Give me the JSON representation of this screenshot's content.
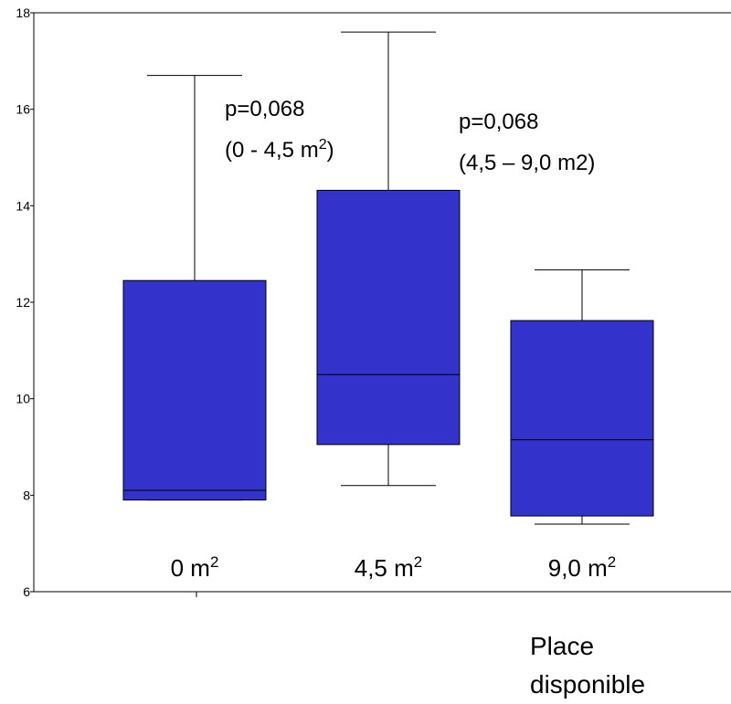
{
  "chart_data": {
    "type": "box",
    "ylim": [
      6,
      18
    ],
    "yticks": [
      "6",
      "8",
      "10",
      "12",
      "14",
      "16",
      "18"
    ],
    "ytick_values": [
      6,
      8,
      10,
      12,
      14,
      16,
      18
    ],
    "xlabel": [
      "Place",
      "disponible"
    ],
    "box_color": "#3333CC",
    "categories": [
      {
        "label": "0 m",
        "sup": "2",
        "whisker_low": 7.9,
        "q1": 7.9,
        "median": 8.1,
        "q3": 12.45,
        "whisker_high": 16.7
      },
      {
        "label": "4,5 m",
        "sup": "2",
        "whisker_low": 8.2,
        "q1": 9.05,
        "median": 10.5,
        "q3": 14.32,
        "whisker_high": 17.6
      },
      {
        "label": "9,0 m",
        "sup": "2",
        "whisker_low": 7.4,
        "q1": 7.57,
        "median": 9.15,
        "q3": 11.62,
        "whisker_high": 12.67
      }
    ],
    "annotations": [
      {
        "line1": "p=0,068",
        "line2_pre": "(0 - 4,5 m",
        "line2_sup": "2",
        "line2_post": ")"
      },
      {
        "line1": "p=0,068",
        "line2_pre": "(4,5 – 9,0 m2)",
        "line2_sup": "",
        "line2_post": ""
      }
    ]
  }
}
